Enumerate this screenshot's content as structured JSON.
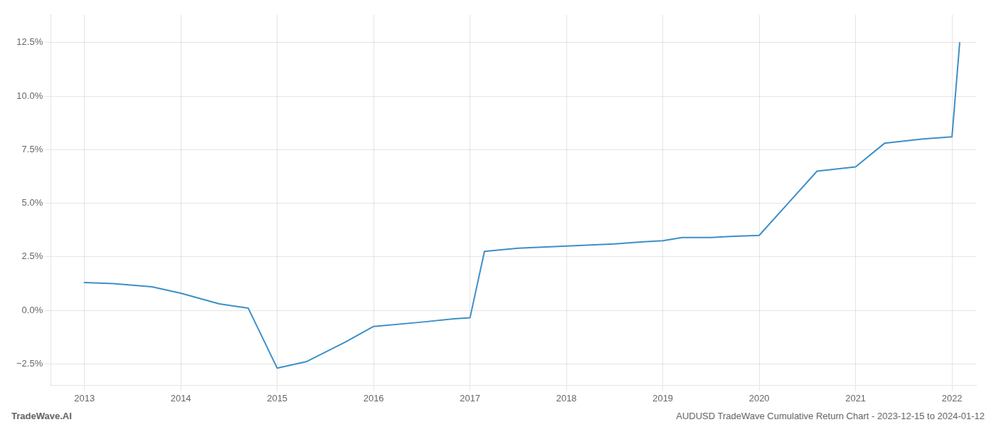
{
  "chart_data": {
    "type": "line",
    "x": [
      2013.0,
      2013.3,
      2013.7,
      2014.0,
      2014.4,
      2014.7,
      2015.0,
      2015.3,
      2015.7,
      2016.0,
      2016.5,
      2016.83,
      2017.0,
      2017.15,
      2017.5,
      2018.0,
      2018.5,
      2018.8,
      2019.0,
      2019.2,
      2019.5,
      2019.7,
      2020.0,
      2020.3,
      2020.6,
      2021.0,
      2021.3,
      2021.7,
      2022.0,
      2022.08
    ],
    "values": [
      1.3,
      1.25,
      1.1,
      0.8,
      0.3,
      0.1,
      -2.7,
      -2.4,
      -1.5,
      -0.75,
      -0.55,
      -0.4,
      -0.35,
      2.75,
      2.9,
      3.0,
      3.1,
      3.2,
      3.25,
      3.4,
      3.4,
      3.45,
      3.5,
      5.0,
      6.5,
      6.7,
      7.8,
      8.0,
      8.1,
      12.5
    ],
    "color": "#3d8fc8",
    "xlim": [
      2012.65,
      2022.25
    ],
    "xticks": [
      2013,
      2014,
      2015,
      2016,
      2017,
      2018,
      2019,
      2020,
      2021,
      2022
    ],
    "ylim": [
      -3.5,
      13.8
    ],
    "yticks": [
      {
        "value": -2.5,
        "label": "−2.5%"
      },
      {
        "value": 0.0,
        "label": "0.0%"
      },
      {
        "value": 2.5,
        "label": "2.5%"
      },
      {
        "value": 5.0,
        "label": "5.0%"
      },
      {
        "value": 7.5,
        "label": "7.5%"
      },
      {
        "value": 10.0,
        "label": "10.0%"
      },
      {
        "value": 12.5,
        "label": "12.5%"
      }
    ],
    "grid": true,
    "annotations": [
      "TradeWave.AI",
      "AUDUSD TradeWave Cumulative Return Chart - 2023-12-15 to 2024-01-12"
    ]
  }
}
